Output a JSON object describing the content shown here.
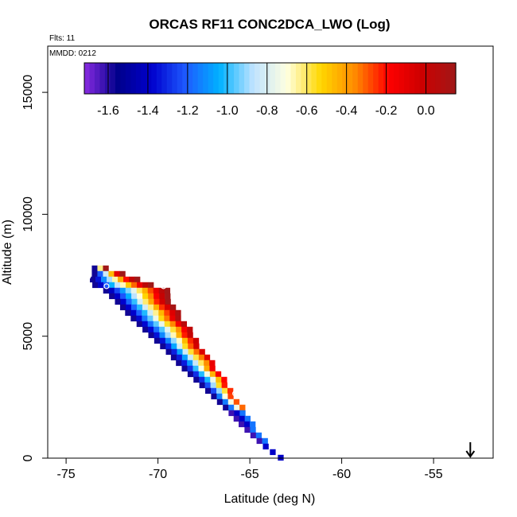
{
  "chart_data": {
    "type": "heatmap",
    "title": "ORCAS RF11 CONC2DCA_LWO (Log)",
    "flights_label": "Flts: 11",
    "mmdd_label": "MMDD: 0212",
    "xlabel": "Latitude (deg N)",
    "ylabel": "Altitude (m)",
    "xlim": [
      -76,
      -52
    ],
    "ylim": [
      0,
      16700
    ],
    "x_ticks": [
      -75,
      -70,
      -65,
      -60,
      -55
    ],
    "x_tick_labels": [
      "-75",
      "-70",
      "-65",
      "-60",
      "-55"
    ],
    "y_ticks": [
      0,
      5000,
      10000,
      15000
    ],
    "y_tick_labels": [
      "0",
      "5000",
      "10000",
      "15000"
    ],
    "colorbar": {
      "range": [
        -1.72,
        0.15
      ],
      "ticks": [
        -1.6,
        -1.4,
        -1.2,
        -1.0,
        -0.8,
        -0.6,
        -0.4,
        -0.2,
        0.0
      ],
      "tick_labels": [
        "-1.6",
        "-1.4",
        "-1.2",
        "-1.0",
        "-0.8",
        "-0.6",
        "-0.4",
        "-0.2",
        "0.0"
      ],
      "colors": [
        "#8a2be2",
        "#00008b",
        "#0000cd",
        "#1e5aff",
        "#00b2ff",
        "#bfe3ff",
        "#ffffe0",
        "#ffd700",
        "#ff8c00",
        "#ff0000",
        "#cc0000",
        "#a01818"
      ]
    },
    "arrow_marker": {
      "latitude": -53,
      "direction": "down"
    },
    "profile": {
      "description": "Descending profile; cells along a diagonal band, log concentration decreasing from upper-right edge (red) to lower-left edge (blue).",
      "top": {
        "latitude": -73.5,
        "altitude": 7900
      },
      "bottom": {
        "latitude": -63.3,
        "altitude": 100
      },
      "band_points": [
        {
          "altitude": 7900,
          "lat_left": -73.6,
          "lat_right": -72.6
        },
        {
          "altitude": 7600,
          "lat_left": -73.6,
          "lat_right": -71.7
        },
        {
          "altitude": 7300,
          "lat_left": -73.8,
          "lat_right": -70.6
        },
        {
          "altitude": 7000,
          "lat_left": -73.0,
          "lat_right": -69.5
        },
        {
          "altitude": 6500,
          "lat_left": -72.3,
          "lat_right": -69.2
        },
        {
          "altitude": 6000,
          "lat_left": -71.7,
          "lat_right": -68.8
        },
        {
          "altitude": 5500,
          "lat_left": -71.0,
          "lat_right": -68.3
        },
        {
          "altitude": 5000,
          "lat_left": -70.3,
          "lat_right": -67.9
        },
        {
          "altitude": 4500,
          "lat_left": -69.6,
          "lat_right": -67.5
        },
        {
          "altitude": 4000,
          "lat_left": -69.0,
          "lat_right": -67.0
        },
        {
          "altitude": 3500,
          "lat_left": -68.3,
          "lat_right": -66.5
        },
        {
          "altitude": 3000,
          "lat_left": -67.6,
          "lat_right": -66.0
        },
        {
          "altitude": 2500,
          "lat_left": -66.9,
          "lat_right": -65.7
        },
        {
          "altitude": 2000,
          "lat_left": -66.2,
          "lat_right": -65.2
        },
        {
          "altitude": 1500,
          "lat_left": -65.6,
          "lat_right": -64.8
        },
        {
          "altitude": 1000,
          "lat_left": -64.9,
          "lat_right": -64.4
        },
        {
          "altitude": 600,
          "lat_left": -64.3,
          "lat_right": -63.9
        },
        {
          "altitude": 300,
          "lat_left": -63.8,
          "lat_right": -63.5
        },
        {
          "altitude": 100,
          "lat_left": -63.4,
          "lat_right": -63.2
        }
      ],
      "markers": [
        {
          "latitude": -69.7,
          "altitude": 7050
        },
        {
          "latitude": -72.8,
          "altitude": 7050
        },
        {
          "latitude": -65.8,
          "altitude": 2650
        },
        {
          "latitude": -73.5,
          "altitude": 8100
        },
        {
          "latitude": -73.8,
          "altitude": 7450
        }
      ]
    }
  }
}
